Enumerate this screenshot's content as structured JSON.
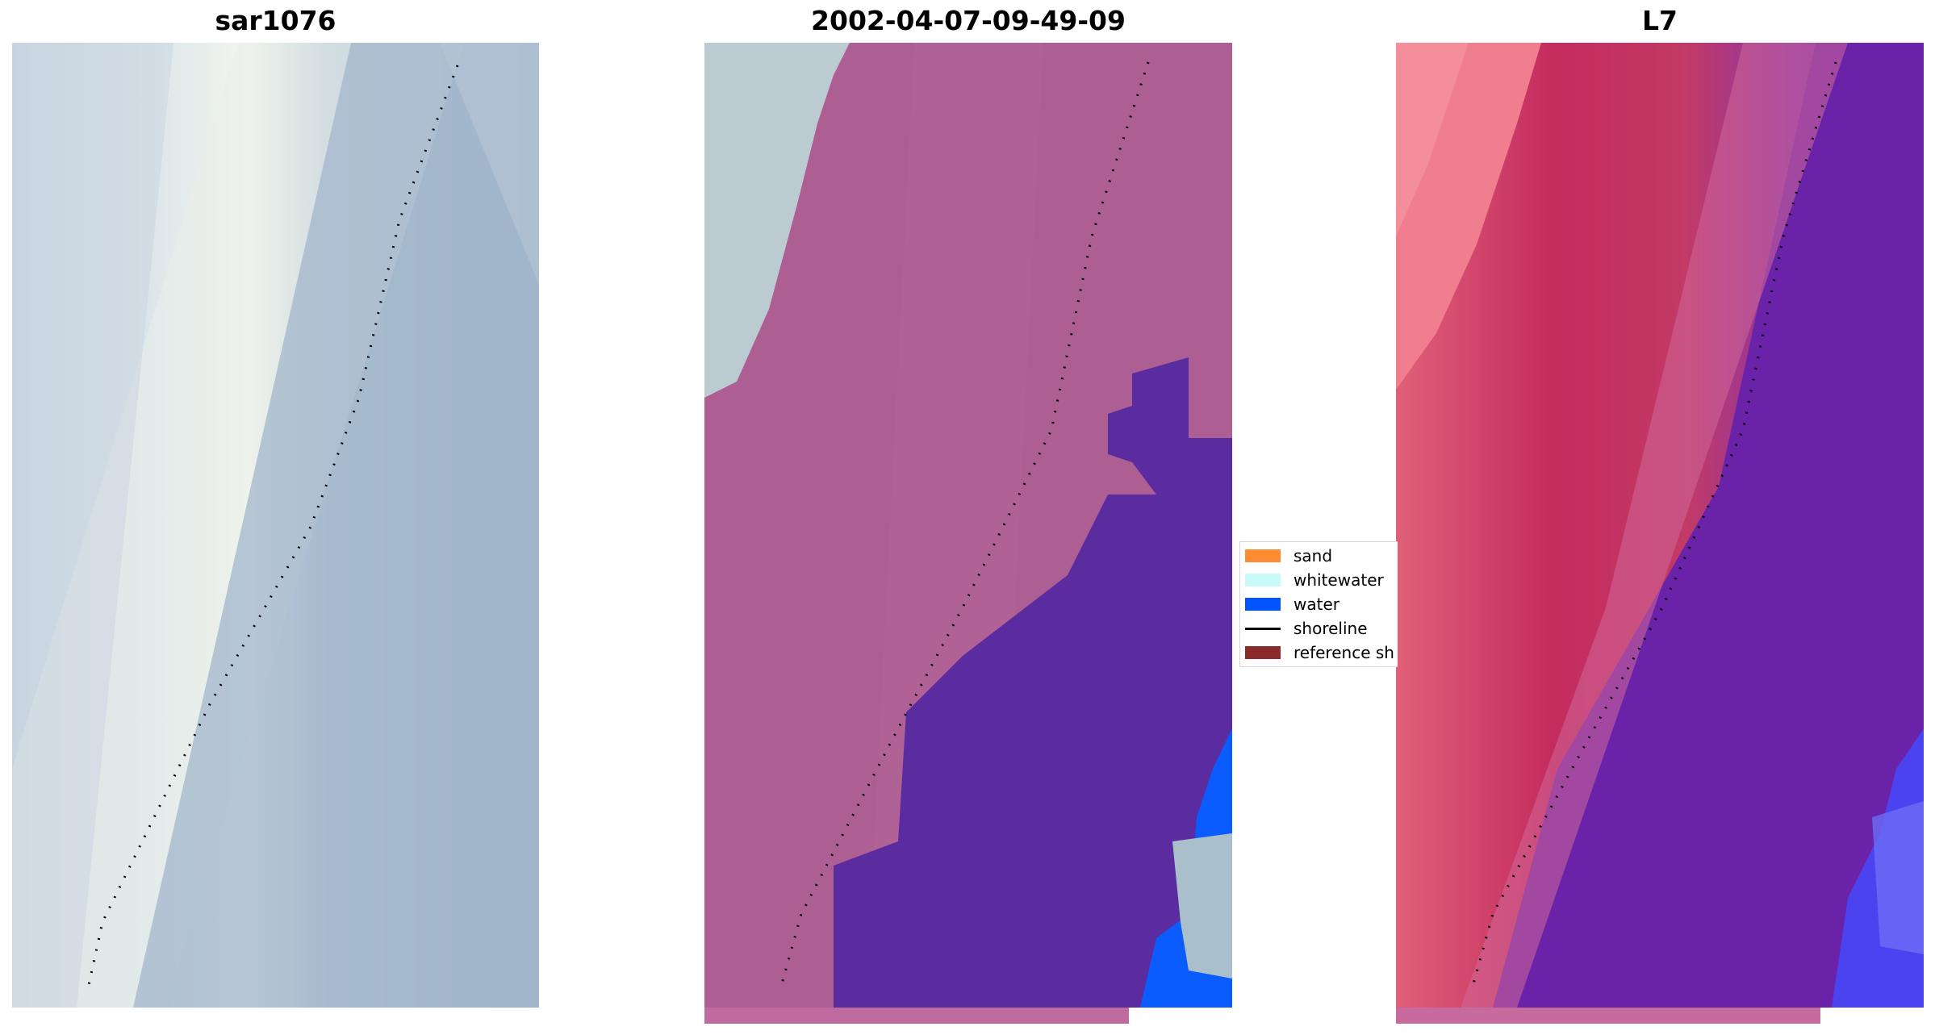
{
  "panels": [
    {
      "title": "sar1076"
    },
    {
      "title": "2002-04-07-09-49-09"
    },
    {
      "title": "L7"
    }
  ],
  "legend": {
    "items": [
      {
        "label": "sand",
        "color": "#ff8c32"
      },
      {
        "label": "whitewater",
        "color": "#c8fafa"
      },
      {
        "label": "water",
        "color": "#0055ff"
      },
      {
        "label": "shoreline",
        "color": "#000000"
      },
      {
        "label": "reference sh",
        "color": "#8b2a2a"
      }
    ]
  },
  "colors": {
    "rgb_beach": "#eef2ee",
    "rgb_sea": "#9fb3c8",
    "class_sand_overlay": "#b05f94",
    "class_water_overlay": "#5a2a9e",
    "class_whitewater_overlay": "#a8c0cc",
    "class_water_bright": "#0a5cff",
    "false_color_land": "#c42b5e",
    "false_color_sea": "#6a22a8"
  }
}
